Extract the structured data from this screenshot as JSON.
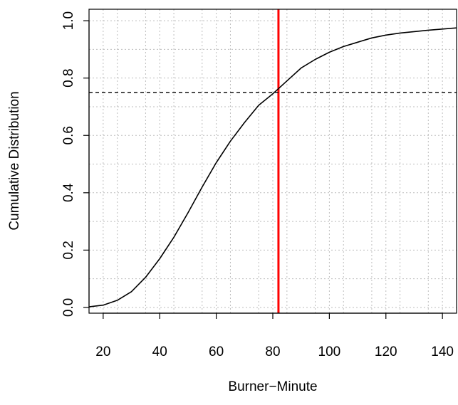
{
  "chart_data": {
    "type": "line",
    "title": "",
    "xlabel": "Burner−Minute",
    "ylabel": "Cumulative Distribution",
    "xlim": [
      15,
      145
    ],
    "ylim": [
      -0.02,
      1.04
    ],
    "x_ticks": [
      20,
      40,
      60,
      80,
      100,
      120,
      140
    ],
    "x_tick_labels": [
      "20",
      "40",
      "60",
      "80",
      "100",
      "120",
      "140"
    ],
    "y_ticks": [
      0.0,
      0.2,
      0.4,
      0.6,
      0.8,
      1.0
    ],
    "y_tick_labels": [
      "0.0",
      "0.2",
      "0.4",
      "0.6",
      "0.8",
      "1.0"
    ],
    "grid": true,
    "grid_x": [
      15,
      25,
      35,
      45,
      55,
      65,
      75,
      85,
      95,
      105,
      115,
      125,
      135,
      145,
      20,
      40,
      60,
      80,
      100,
      120,
      140
    ],
    "grid_y": [
      0.0,
      0.1,
      0.2,
      0.3,
      0.4,
      0.5,
      0.6,
      0.7,
      0.8,
      0.9,
      1.0
    ],
    "series": [
      {
        "x": [
          15,
          20,
          25,
          30,
          35,
          40,
          45,
          50,
          55,
          60,
          65,
          70,
          75,
          80,
          85,
          90,
          95,
          100,
          105,
          110,
          115,
          120,
          125,
          130,
          135,
          140,
          145
        ],
        "y": [
          0.002,
          0.008,
          0.025,
          0.055,
          0.105,
          0.17,
          0.245,
          0.33,
          0.42,
          0.505,
          0.58,
          0.645,
          0.705,
          0.745,
          0.79,
          0.835,
          0.865,
          0.89,
          0.91,
          0.925,
          0.94,
          0.95,
          0.957,
          0.962,
          0.967,
          0.971,
          0.975
        ],
        "color": "#000000"
      }
    ],
    "reference_lines": [
      {
        "orientation": "vertical",
        "value": 82,
        "color": "#ff0000",
        "style": "solid"
      },
      {
        "orientation": "horizontal",
        "value": 0.75,
        "color": "#000000",
        "style": "dashed"
      }
    ]
  }
}
